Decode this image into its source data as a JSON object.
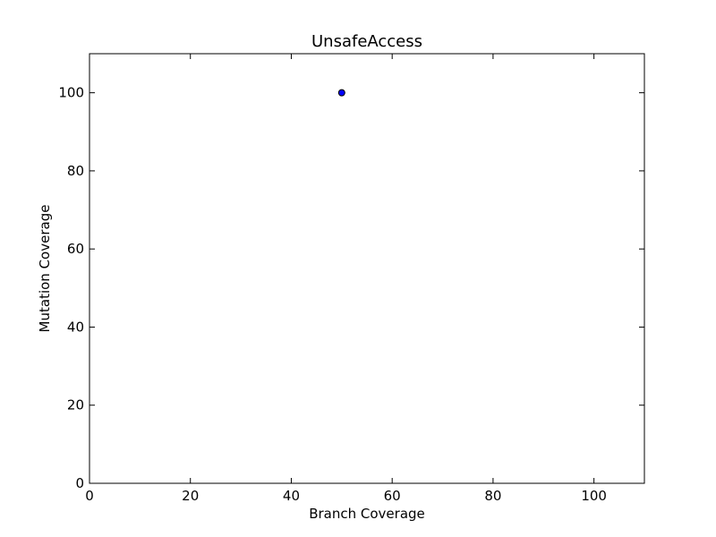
{
  "chart_data": {
    "type": "scatter",
    "title": "UnsafeAccess",
    "xlabel": "Branch Coverage",
    "ylabel": "Mutation Coverage",
    "xlim": [
      0,
      110
    ],
    "ylim": [
      0,
      110
    ],
    "xticks": [
      0,
      20,
      40,
      60,
      80,
      100
    ],
    "yticks": [
      0,
      20,
      40,
      60,
      80,
      100
    ],
    "points": [
      {
        "x": 50,
        "y": 100
      }
    ],
    "grid": false,
    "marker_color": "#0000ff",
    "marker_edge_color": "#000000"
  }
}
